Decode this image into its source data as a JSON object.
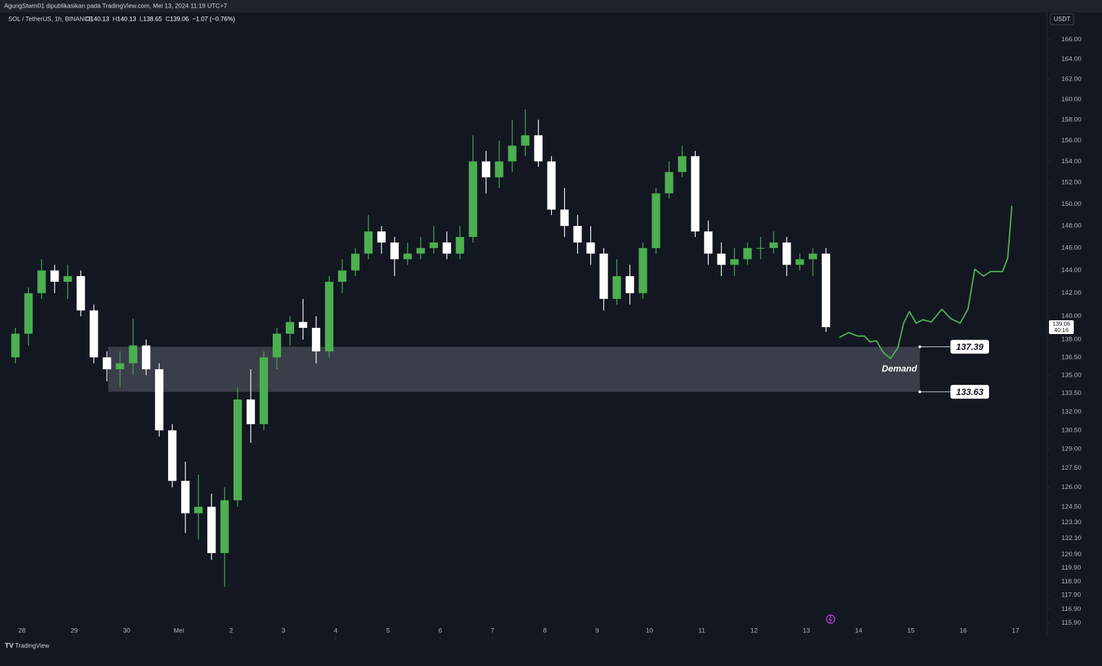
{
  "page": {
    "publisher": "AgungStwm01 dipublikasikan pada TradingView.com, Mei 13, 2024 11:19 UTC+7",
    "brand": "TradingView",
    "currency_button": "USDT"
  },
  "chart_data": {
    "type": "candlestick",
    "symbol": "SOL / TetherUS, 1h, BINANCE",
    "ohlc_legend": [
      {
        "label": "O",
        "value": "140.13"
      },
      {
        "label": "H",
        "value": "140.13"
      },
      {
        "label": "L",
        "value": "138.65"
      },
      {
        "label": "C",
        "value": "139.06"
      },
      {
        "label": "",
        "value": "−1.07 (−0.76%)"
      }
    ],
    "log_scale": true,
    "grid": false,
    "xlim": [
      -0.42,
      19.6
    ],
    "ylim": [
      114.9,
      168.8
    ],
    "xticks": [
      {
        "value": 0,
        "label": "28"
      },
      {
        "value": 1,
        "label": "29"
      },
      {
        "value": 2,
        "label": "30"
      },
      {
        "value": 3,
        "label": "Mei"
      },
      {
        "value": 4,
        "label": "2"
      },
      {
        "value": 5,
        "label": "3"
      },
      {
        "value": 6,
        "label": "4"
      },
      {
        "value": 7,
        "label": "5"
      },
      {
        "value": 8,
        "label": "6"
      },
      {
        "value": 9,
        "label": "7"
      },
      {
        "value": 10,
        "label": "8"
      },
      {
        "value": 11,
        "label": "9"
      },
      {
        "value": 12,
        "label": "10"
      },
      {
        "value": 13,
        "label": "11"
      },
      {
        "value": 14,
        "label": "12"
      },
      {
        "value": 15,
        "label": "13"
      },
      {
        "value": 16,
        "label": "14"
      },
      {
        "value": 17,
        "label": "15"
      },
      {
        "value": 18,
        "label": "16"
      },
      {
        "value": 19,
        "label": "17"
      }
    ],
    "yticks": [
      {
        "value": 166,
        "label": "166.00"
      },
      {
        "value": 164,
        "label": "164.00"
      },
      {
        "value": 162,
        "label": "162.00"
      },
      {
        "value": 160,
        "label": "160.00"
      },
      {
        "value": 158,
        "label": "158.00"
      },
      {
        "value": 156,
        "label": "156.00"
      },
      {
        "value": 154,
        "label": "154.00"
      },
      {
        "value": 152,
        "label": "152.00"
      },
      {
        "value": 150,
        "label": "150.00"
      },
      {
        "value": 148,
        "label": "148.00"
      },
      {
        "value": 146,
        "label": "146.00"
      },
      {
        "value": 144,
        "label": "144.00"
      },
      {
        "value": 142,
        "label": "142.00"
      },
      {
        "value": 140,
        "label": "140.00"
      },
      {
        "value": 138,
        "label": "138.00"
      },
      {
        "value": 136.5,
        "label": "136.50"
      },
      {
        "value": 135,
        "label": "135.00"
      },
      {
        "value": 133.5,
        "label": "133.50"
      },
      {
        "value": 132,
        "label": "132.00"
      },
      {
        "value": 130.5,
        "label": "130.50"
      },
      {
        "value": 129,
        "label": "129.00"
      },
      {
        "value": 127.5,
        "label": "127.50"
      },
      {
        "value": 126,
        "label": "126.00"
      },
      {
        "value": 124.5,
        "label": "124.50"
      },
      {
        "value": 123.3,
        "label": "123.30"
      },
      {
        "value": 122.1,
        "label": "122.10"
      },
      {
        "value": 120.9,
        "label": "120.90"
      },
      {
        "value": 119.9,
        "label": "119.90"
      },
      {
        "value": 118.9,
        "label": "118.90"
      },
      {
        "value": 117.9,
        "label": "117.90"
      },
      {
        "value": 116.9,
        "label": "116.90"
      },
      {
        "value": 115.9,
        "label": "115.90"
      }
    ],
    "up_color": "#4caf50",
    "down_color": "#ffffff",
    "series": [
      {
        "name": "SOL / TetherUS",
        "x": [
          -0.25,
          0,
          0.25,
          0.5,
          0.75,
          1,
          1.25,
          1.5,
          1.75,
          2,
          2.25,
          2.5,
          2.75,
          3,
          3.25,
          3.5,
          3.75,
          4,
          4.25,
          4.5,
          4.75,
          5,
          5.25,
          5.5,
          5.75,
          6,
          6.25,
          6.5,
          6.75,
          7,
          7.25,
          7.5,
          7.75,
          8,
          8.25,
          8.5,
          8.75,
          9,
          9.25,
          9.5,
          9.75,
          10,
          10.25,
          10.5,
          10.75,
          11,
          11.25,
          11.5,
          11.75,
          12,
          12.25,
          12.5,
          12.75,
          13,
          13.25,
          13.5,
          13.75,
          14,
          14.25,
          14.5,
          14.75,
          15,
          15.25
        ],
        "open": [
          136.5,
          138.5,
          142,
          144,
          143,
          143.5,
          140.5,
          136.5,
          135.5,
          136,
          137.5,
          135.5,
          130.5,
          126.5,
          124,
          124.5,
          121,
          125,
          133,
          131,
          136.5,
          138.5,
          139.5,
          139,
          137,
          143,
          144,
          145.5,
          147.5,
          146.5,
          145,
          145.5,
          146,
          146.5,
          145.5,
          147,
          154,
          152.5,
          154,
          155.5,
          156.5,
          154,
          149.5,
          148,
          146.5,
          145.5,
          141.5,
          143.5,
          142,
          146,
          151,
          153,
          154.5,
          147.5,
          145.5,
          144.5,
          145,
          146,
          146,
          146.5,
          144.5,
          145,
          145.5
        ],
        "high": [
          139,
          142.5,
          145,
          144.5,
          144.5,
          144,
          141,
          137,
          137,
          139.8,
          138,
          136,
          131,
          128,
          127,
          125.5,
          126,
          134,
          135.5,
          137,
          139,
          140,
          141.5,
          140,
          143.5,
          145,
          146,
          149,
          148,
          147,
          146.5,
          147,
          148,
          147.5,
          148,
          156.5,
          155,
          156,
          158,
          159,
          158,
          154.5,
          151.5,
          149,
          148,
          146,
          145,
          144.5,
          146.5,
          151.5,
          154,
          155.5,
          155,
          148.5,
          146.5,
          146,
          146.5,
          147,
          147.5,
          147,
          145.5,
          146,
          146
        ],
        "low": [
          136,
          137.5,
          141.5,
          142,
          141.5,
          140,
          136,
          134.5,
          134,
          135,
          135,
          130,
          126,
          122.5,
          122,
          120.5,
          118.5,
          124.5,
          129.5,
          130.5,
          135.5,
          137.5,
          138,
          136,
          136.5,
          142,
          143.5,
          145,
          145.5,
          143.5,
          144.5,
          145,
          145.5,
          145,
          145,
          146.5,
          151,
          151.5,
          153,
          154.5,
          153.5,
          149,
          147,
          145.5,
          144.5,
          140.5,
          141,
          141,
          141.5,
          145.5,
          150.5,
          152.5,
          147,
          144.5,
          143.5,
          143.5,
          144.5,
          145,
          145.5,
          143.5,
          144,
          143.5,
          138.65
        ],
        "close": [
          138.5,
          142,
          144,
          143,
          143.5,
          140.5,
          136.5,
          135.5,
          136,
          137.5,
          135.5,
          130.5,
          126.5,
          124,
          124.5,
          121,
          125,
          133,
          131,
          136.5,
          138.5,
          139.5,
          139,
          137,
          143,
          144,
          145.5,
          147.5,
          146.5,
          145,
          145.5,
          146,
          146.5,
          145.5,
          147,
          154,
          152.5,
          154,
          155.5,
          156.5,
          154,
          149.5,
          148,
          146.5,
          145.5,
          141.5,
          143.5,
          142,
          146,
          151,
          153,
          154.5,
          147.5,
          145.5,
          144.5,
          145,
          146,
          146,
          146.5,
          144.5,
          145,
          145.5,
          139.06
        ]
      }
    ],
    "last_price": 139.06,
    "countdown": "40:16",
    "zone": {
      "label": "Demand",
      "top": 137.39,
      "bottom": 133.63,
      "x": [
        1.65,
        17.17
      ],
      "color": "rgba(72,75,88,0.75)"
    },
    "projection": {
      "color": "#4caf50",
      "x": [
        15.64,
        15.81,
        15.98,
        16.11,
        16.22,
        16.34,
        16.47,
        16.61,
        16.75,
        16.86,
        16.97,
        17.1,
        17.23,
        17.39,
        17.59,
        17.76,
        17.94,
        18.09,
        18.22,
        18.39,
        18.52,
        18.75,
        18.85,
        18.93
      ],
      "values": [
        138.2,
        138.6,
        138.3,
        138.3,
        137.8,
        137.9,
        136.9,
        136.4,
        137.3,
        139.4,
        140.4,
        139.4,
        139.7,
        139.5,
        140.6,
        139.8,
        139.4,
        140.6,
        144.1,
        143.5,
        143.9,
        143.9,
        145.1,
        149.8
      ]
    }
  }
}
